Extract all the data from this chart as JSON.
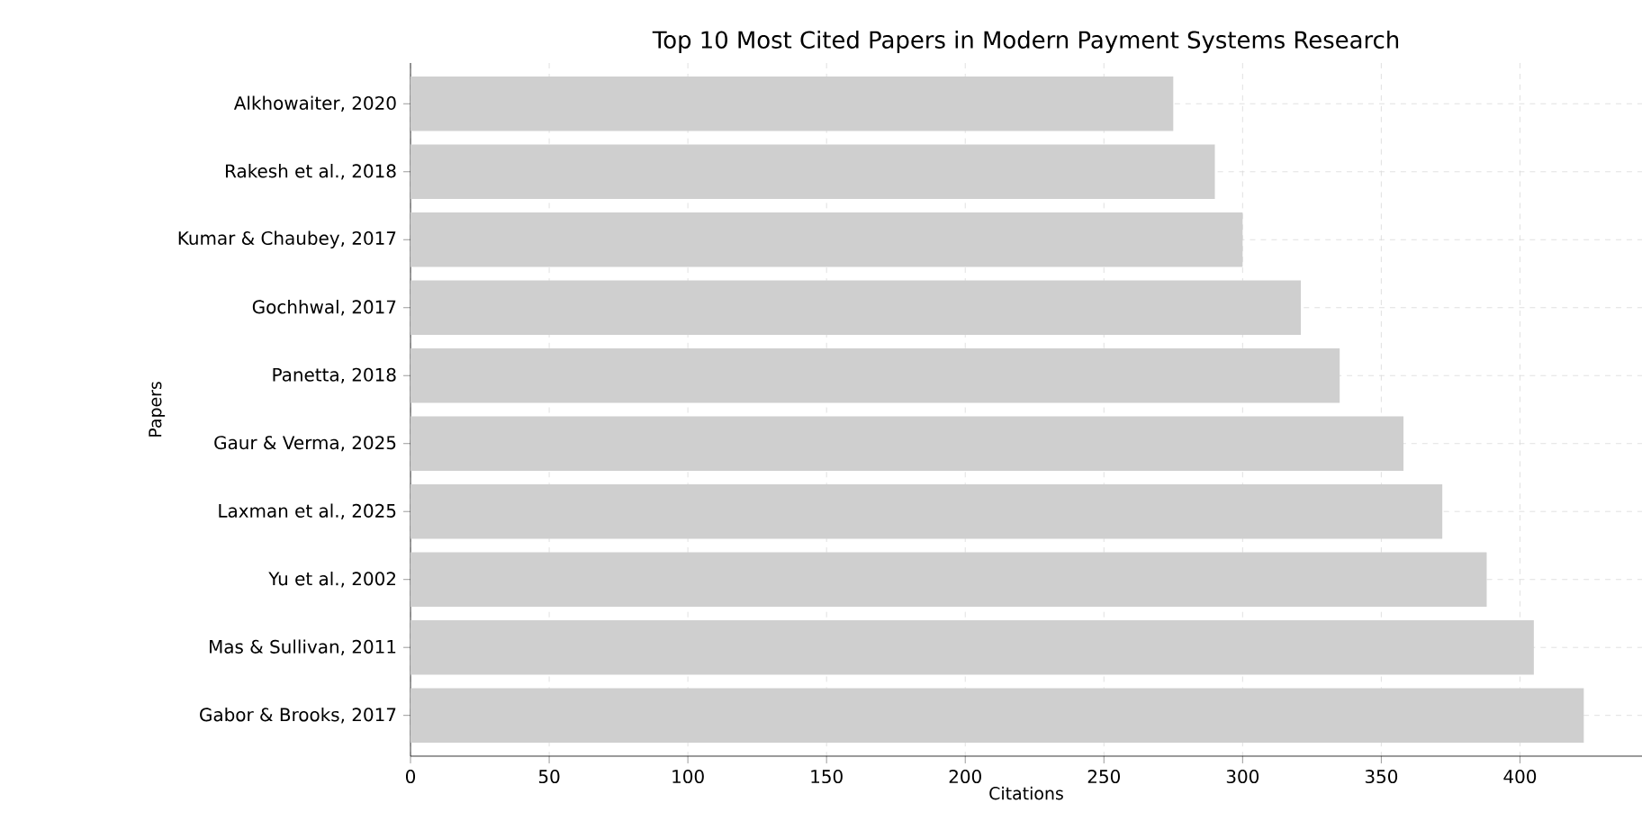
{
  "chart_data": {
    "type": "bar",
    "orientation": "horizontal",
    "title": "Top 10 Most Cited Papers in Modern Payment Systems Research",
    "xlabel": "Citations",
    "ylabel": "Papers",
    "categories": [
      "Alkhowaiter, 2020",
      "Rakesh et al., 2018",
      "Kumar & Chaubey, 2017",
      "Gochhwal, 2017",
      "Panetta, 2018",
      "Gaur & Verma, 2025",
      "Laxman et al., 2025",
      "Yu et al., 2002",
      "Mas & Sullivan, 2011",
      "Gabor & Brooks, 2017"
    ],
    "values": [
      275,
      290,
      300,
      321,
      335,
      358,
      372,
      388,
      405,
      423
    ],
    "color": "#cfcfcf",
    "xlim": [
      0,
      444
    ],
    "xticks": [
      0,
      50,
      100,
      150,
      200,
      250,
      300,
      350,
      400
    ],
    "grid": true
  }
}
